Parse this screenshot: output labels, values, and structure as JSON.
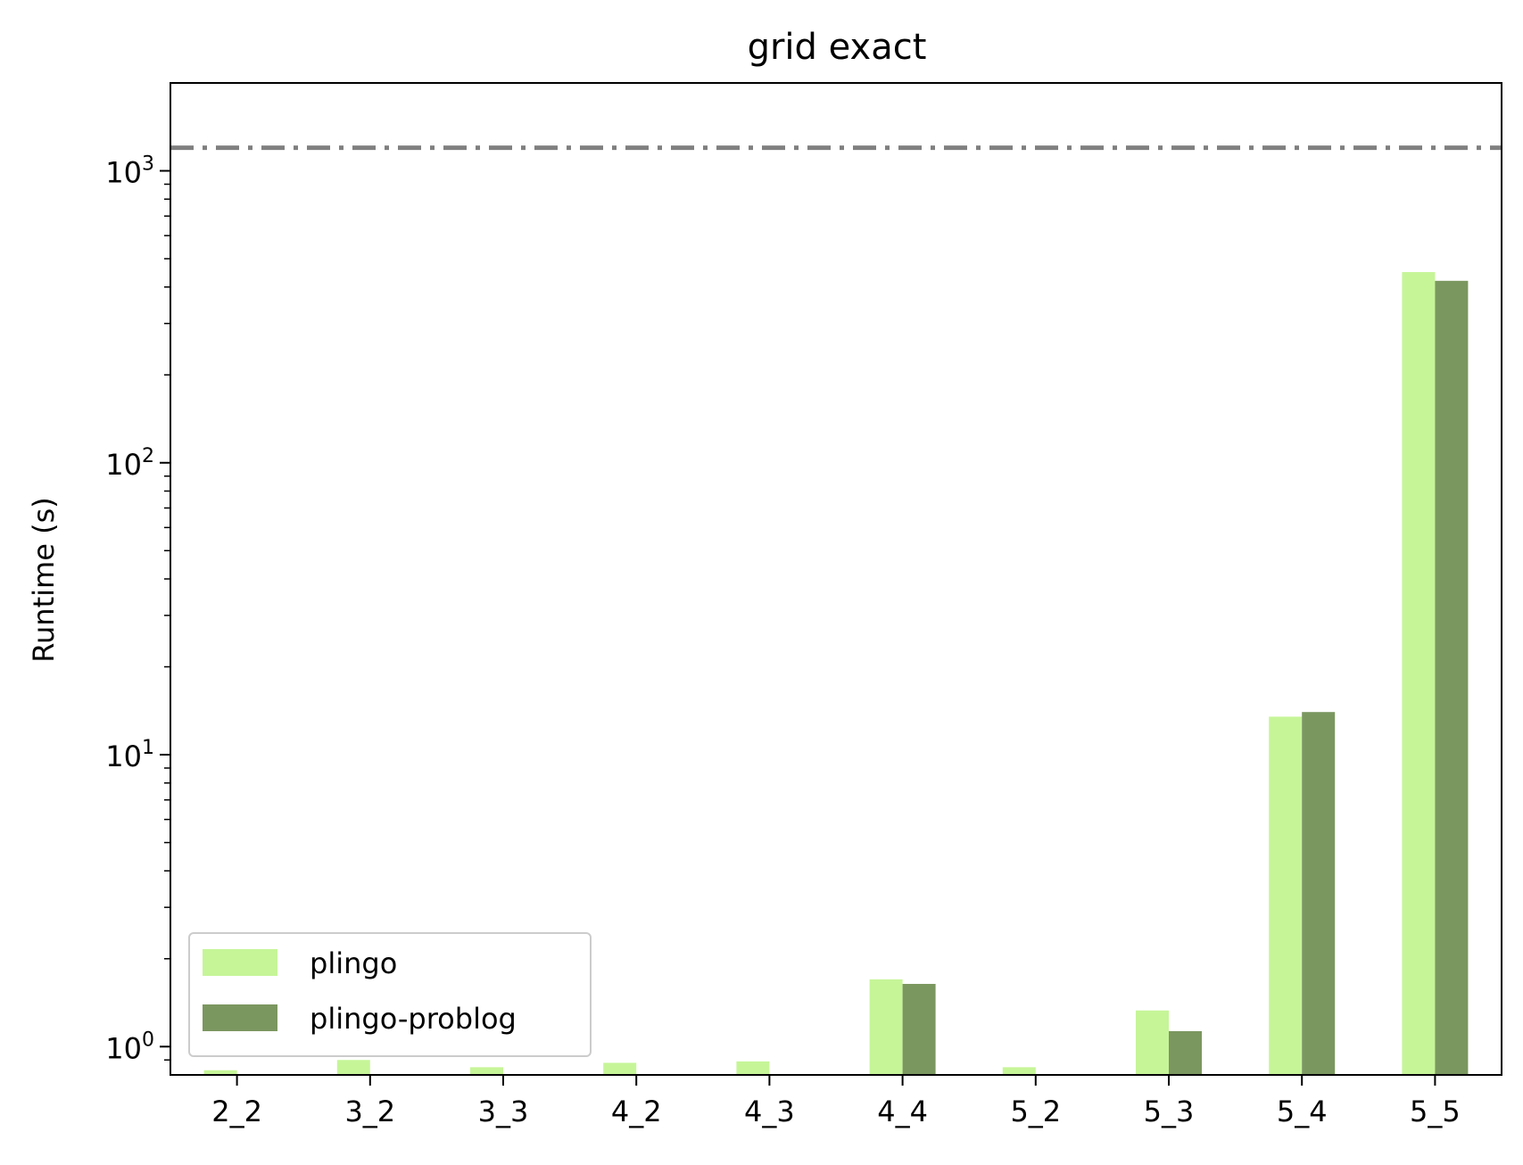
{
  "chart_data": {
    "type": "bar",
    "title": "grid exact",
    "xlabel": "",
    "ylabel": "Runtime (s)",
    "yscale": "log",
    "ylim": [
      0.8,
      2000
    ],
    "categories": [
      "2_2",
      "3_2",
      "3_3",
      "4_2",
      "4_3",
      "4_4",
      "5_2",
      "5_3",
      "5_4",
      "5_5"
    ],
    "series": [
      {
        "name": "plingo",
        "color": "#c6f598",
        "values": [
          0.83,
          0.9,
          0.85,
          0.88,
          0.89,
          1.7,
          0.85,
          1.33,
          13.5,
          450
        ]
      },
      {
        "name": "plingo-problog",
        "color": "#7b9760",
        "values": [
          null,
          null,
          null,
          null,
          null,
          1.64,
          null,
          1.13,
          14.0,
          420
        ]
      }
    ],
    "timeout_line": {
      "value": 1200,
      "color": "#808080",
      "style": "dash-dot"
    },
    "yticks": [
      {
        "value": 1,
        "base": "10",
        "exp": "0"
      },
      {
        "value": 10,
        "base": "10",
        "exp": "1"
      },
      {
        "value": 100,
        "base": "10",
        "exp": "2"
      },
      {
        "value": 1000,
        "base": "10",
        "exp": "3"
      }
    ],
    "legend": {
      "position": "lower-left"
    },
    "grid": false
  }
}
